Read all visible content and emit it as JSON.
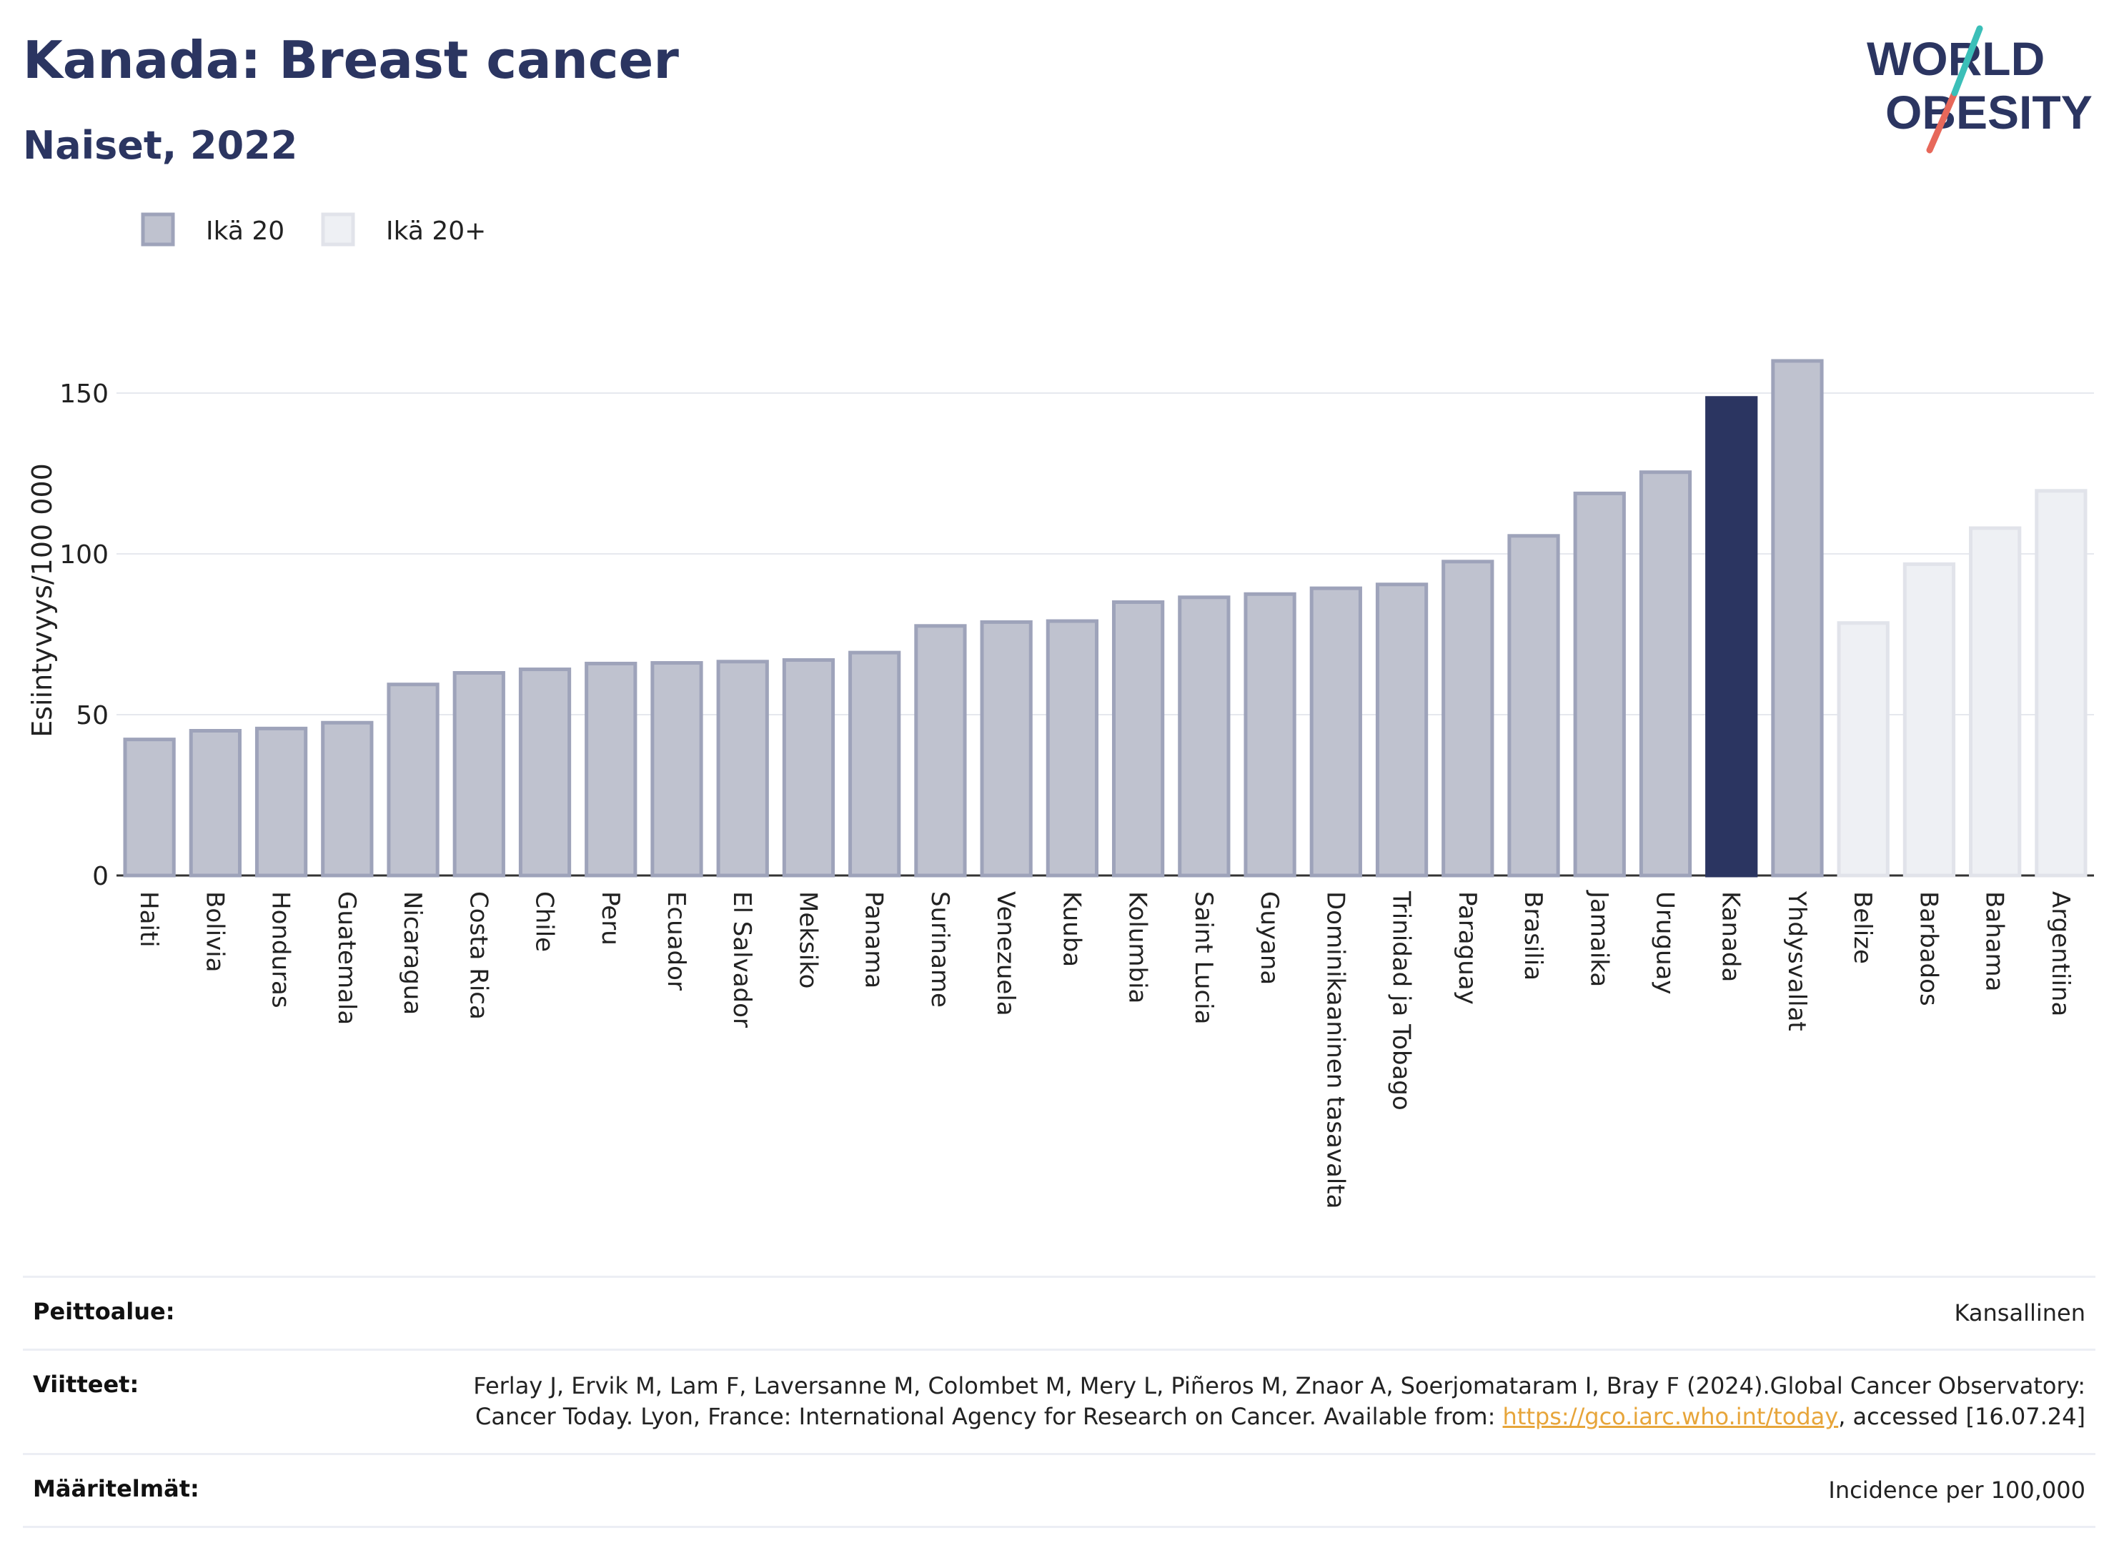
{
  "header": {
    "title": "Kanada: Breast cancer",
    "subtitle": "Naiset, 2022"
  },
  "logo": {
    "line1": "WORLD",
    "line2": "OBESITY"
  },
  "legend": [
    {
      "label": "Ikä 20",
      "color": "#bfc2cf",
      "stroke": "#9ea3ba"
    },
    {
      "label": "Ikä 20+",
      "color": "#eef0f4",
      "stroke": "#e1e3ea"
    }
  ],
  "colors": {
    "highlight": "#2b3561",
    "bar": "#bfc2cf",
    "bar_stroke": "#9ea3ba",
    "bar_light": "#eef0f4",
    "bar_light_stroke": "#e1e3ea"
  },
  "chart_data": {
    "type": "bar",
    "ylabel": "Esiintyvyys/100 000",
    "ylim": [
      0,
      170
    ],
    "yticks": [
      0,
      50,
      100,
      150
    ],
    "grid": true,
    "legend_position": "top-left",
    "categories": [
      "Haiti",
      "Bolivia",
      "Honduras",
      "Guatemala",
      "Nicaragua",
      "Costa Rica",
      "Chile",
      "Peru",
      "Ecuador",
      "El Salvador",
      "Meksiko",
      "Panama",
      "Suriname",
      "Venezuela",
      "Kuuba",
      "Kolumbia",
      "Saint Lucia",
      "Guyana",
      "Dominikaaninen tasavalta",
      "Trinidad ja Tobago",
      "Paraguay",
      "Brasilia",
      "Jamaika",
      "Uruguay",
      "Kanada",
      "Yhdysvallat",
      "Belize",
      "Barbados",
      "Bahama",
      "Argentiina"
    ],
    "values": [
      42.3,
      45.0,
      45.7,
      47.5,
      59.4,
      63.0,
      64.1,
      65.9,
      66.1,
      66.5,
      67.0,
      69.3,
      77.6,
      78.8,
      79.1,
      85.0,
      86.5,
      87.5,
      89.3,
      90.5,
      97.6,
      105.6,
      118.8,
      125.4,
      148.5,
      160.0,
      78.5,
      96.8,
      108.0,
      119.6
    ],
    "group": [
      "Ikä 20",
      "Ikä 20",
      "Ikä 20",
      "Ikä 20",
      "Ikä 20",
      "Ikä 20",
      "Ikä 20",
      "Ikä 20",
      "Ikä 20",
      "Ikä 20",
      "Ikä 20",
      "Ikä 20",
      "Ikä 20",
      "Ikä 20",
      "Ikä 20",
      "Ikä 20",
      "Ikä 20",
      "Ikä 20",
      "Ikä 20",
      "Ikä 20",
      "Ikä 20",
      "Ikä 20",
      "Ikä 20",
      "Ikä 20",
      "Ikä 20",
      "Ikä 20",
      "Ikä 20+",
      "Ikä 20+",
      "Ikä 20+",
      "Ikä 20+"
    ],
    "highlight": "Kanada"
  },
  "footer": {
    "rows": [
      {
        "key": "Peittoalue:",
        "value": "Kansallinen"
      },
      {
        "key": "Viitteet:",
        "value_pre": "Ferlay J, Ervik M, Lam F, Laversanne M, Colombet M, Mery L, Piñeros M, Znaor A, Soerjomataram I, Bray F (2024).Global Cancer Observatory: Cancer Today. Lyon, France: International Agency for Research on Cancer. Available from: ",
        "link": "https://gco.iarc.who.int/today",
        "value_post": ", accessed [16.07.24]"
      },
      {
        "key": "Määritelmät:",
        "value": "Incidence per 100,000"
      }
    ]
  }
}
